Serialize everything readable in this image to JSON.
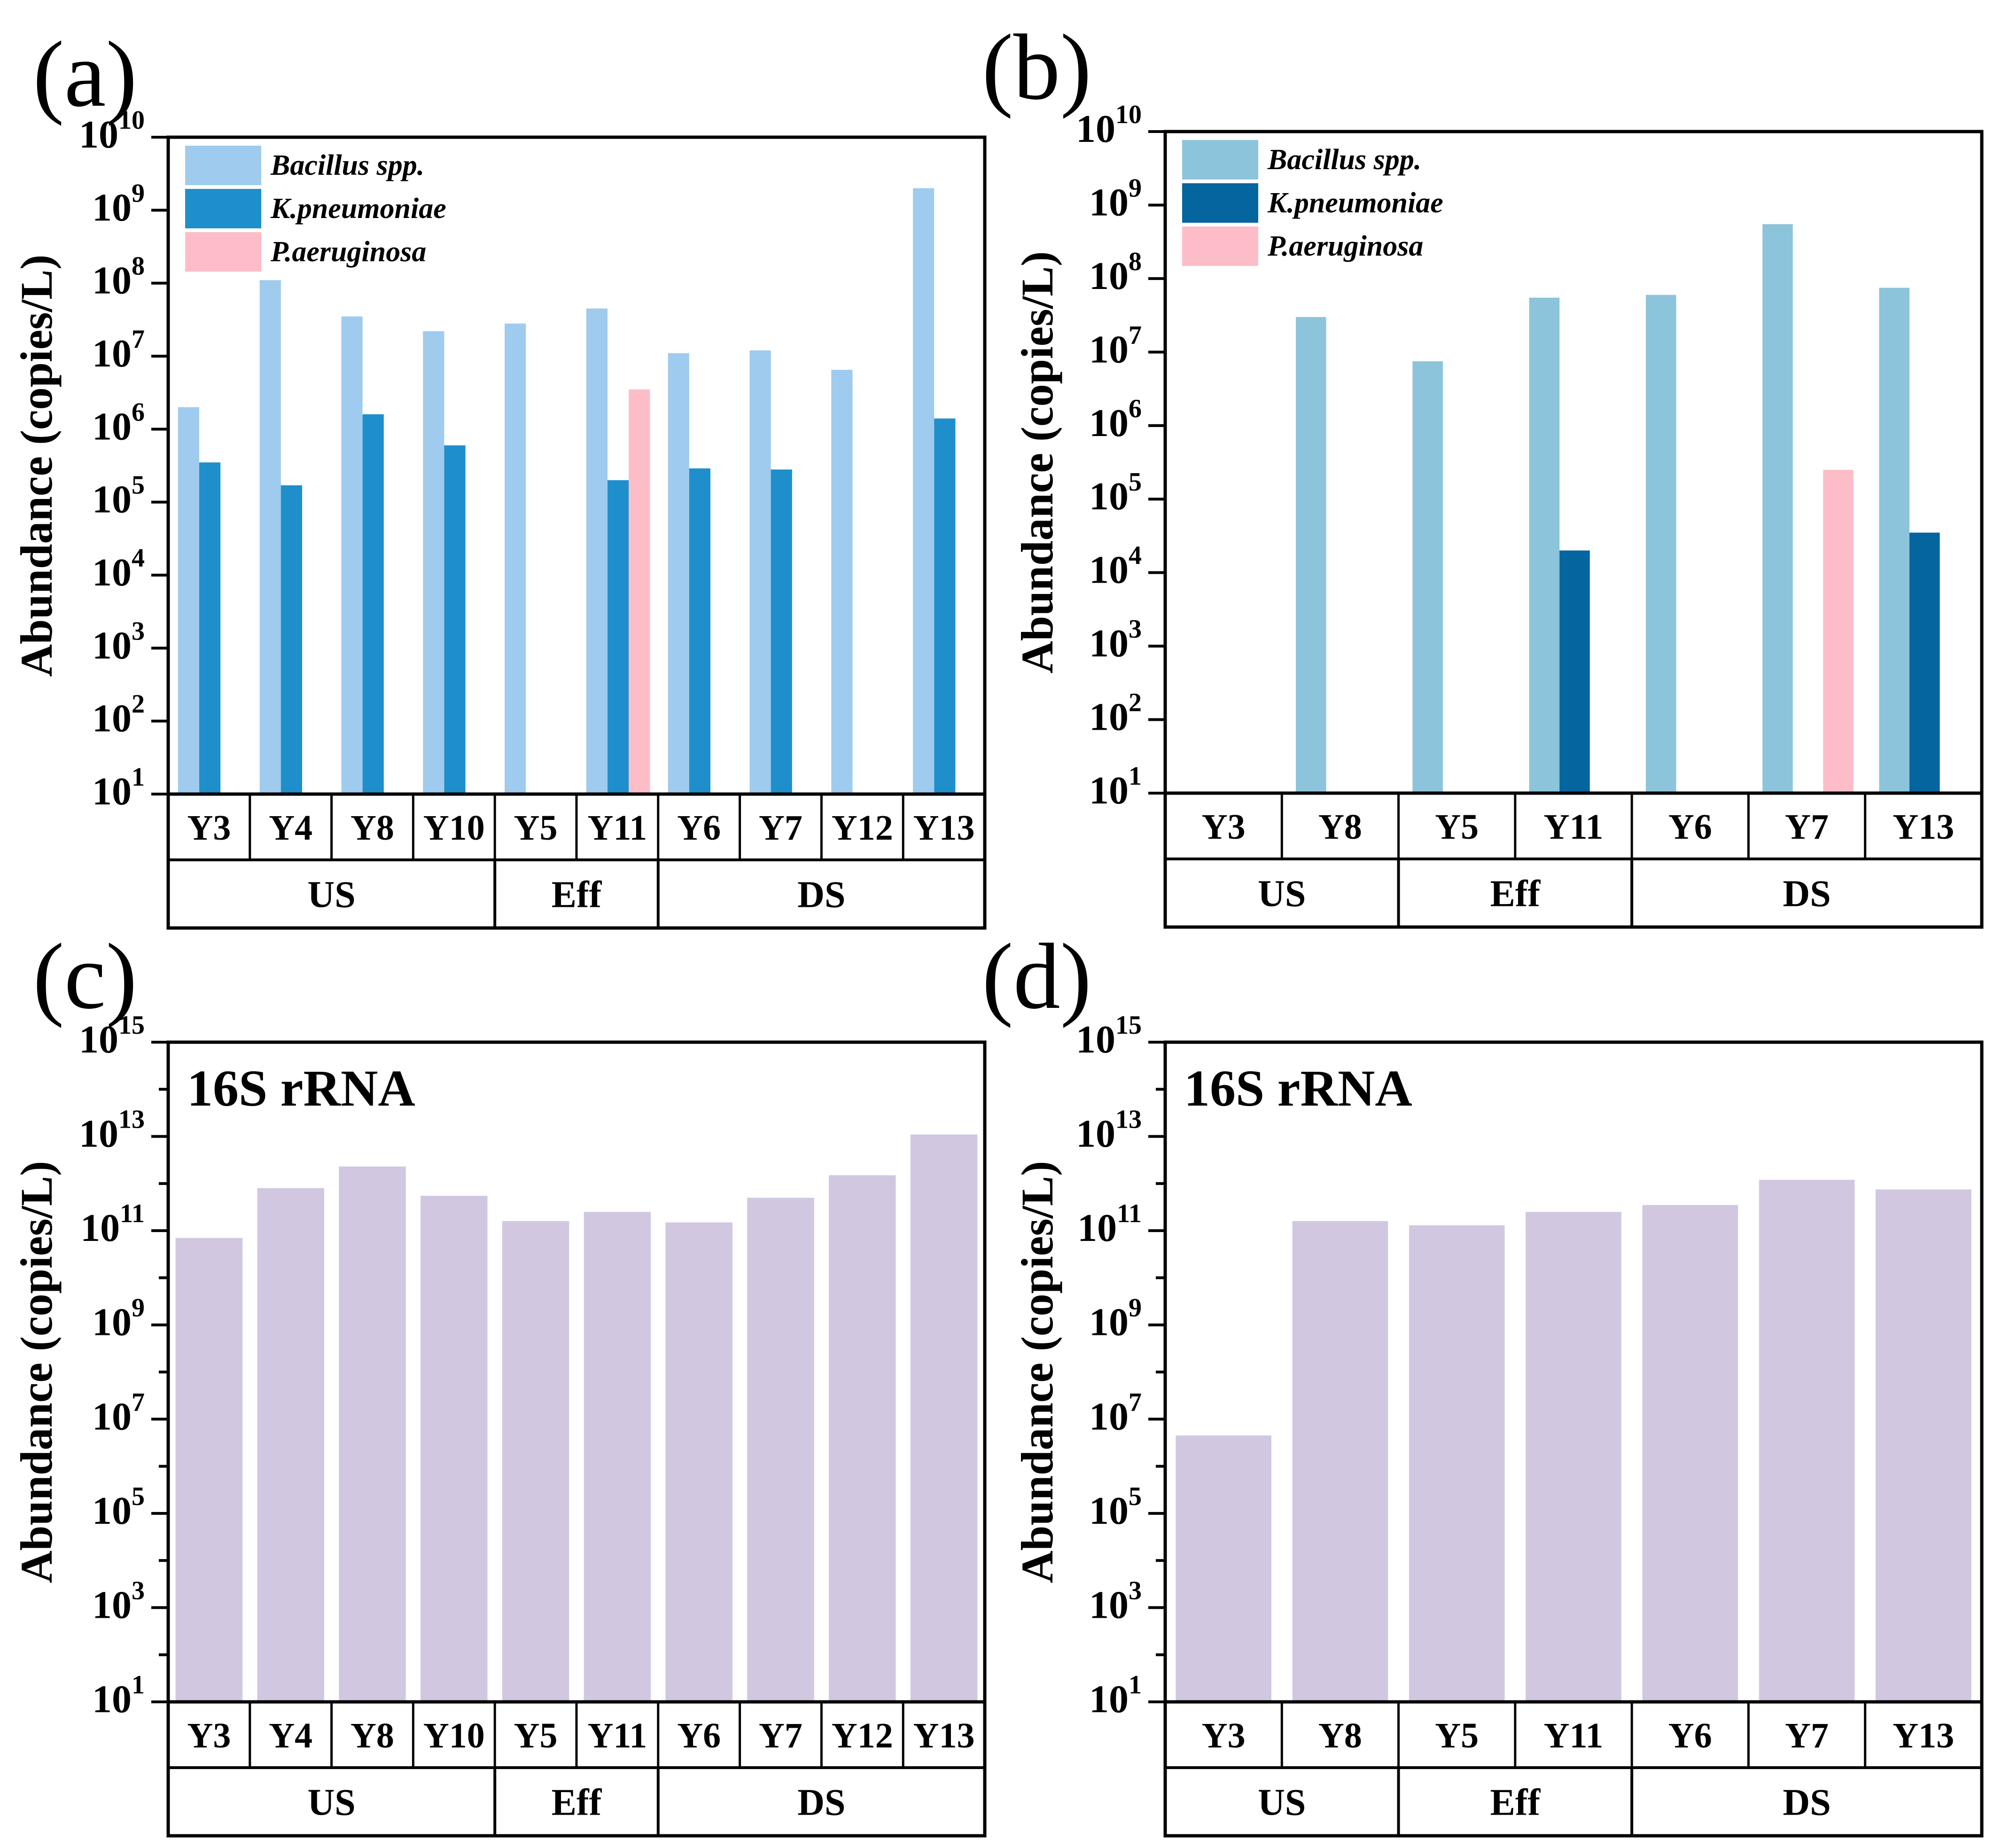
{
  "ylabel": "Abundance (copies/L)",
  "colors": {
    "bacillus_a": "#9fcbee",
    "kpneu_a": "#1f8fcb",
    "paer": "#fdbdc8",
    "bacillus_b": "#8cc4db",
    "kpneu_b": "#05659f",
    "rrna": "#d2c7e1"
  },
  "chart_data": [
    {
      "panel": "(a)",
      "type": "bar",
      "ylabel": "Abundance (copies/L)",
      "yscale": "log",
      "ylim_exp": [
        1,
        10
      ],
      "yticks_exp": [
        1,
        2,
        3,
        4,
        5,
        6,
        7,
        8,
        9,
        10
      ],
      "categories": [
        "Y3",
        "Y4",
        "Y8",
        "Y10",
        "Y5",
        "Y11",
        "Y6",
        "Y7",
        "Y12",
        "Y13"
      ],
      "groups": [
        {
          "label": "US",
          "count": 4
        },
        {
          "label": "Eff",
          "count": 2
        },
        {
          "label": "DS",
          "count": 4
        }
      ],
      "legend_position": "top-left",
      "series": [
        {
          "name": "Bacillus spp.",
          "color_key": "bacillus_a",
          "values": [
            2000000.0,
            110000000.0,
            35000000.0,
            22000000.0,
            28000000.0,
            45000000.0,
            11000000.0,
            12000000.0,
            6500000.0,
            2000000000.0
          ]
        },
        {
          "name": "K.pneumoniae",
          "color_key": "kpneu_a",
          "values": [
            350000.0,
            170000.0,
            1600000.0,
            600000.0,
            null,
            200000.0,
            290000.0,
            280000.0,
            null,
            1400000.0
          ]
        },
        {
          "name": "P.aeruginosa",
          "color_key": "paer",
          "values": [
            null,
            null,
            null,
            null,
            null,
            3500000.0,
            null,
            null,
            null,
            null
          ]
        }
      ]
    },
    {
      "panel": "(b)",
      "type": "bar",
      "ylabel": "Abundance (copies/L)",
      "yscale": "log",
      "ylim_exp": [
        1,
        10
      ],
      "yticks_exp": [
        1,
        2,
        3,
        4,
        5,
        6,
        7,
        8,
        9,
        10
      ],
      "categories": [
        "Y3",
        "Y8",
        "Y5",
        "Y11",
        "Y6",
        "Y7",
        "Y13"
      ],
      "groups": [
        {
          "label": "US",
          "count": 2
        },
        {
          "label": "Eff",
          "count": 2
        },
        {
          "label": "DS",
          "count": 3
        }
      ],
      "legend_position": "top-left",
      "series": [
        {
          "name": "Bacillus spp.",
          "color_key": "bacillus_b",
          "values": [
            null,
            30000000.0,
            7500000.0,
            55000000.0,
            60000000.0,
            550000000.0,
            75000000.0
          ]
        },
        {
          "name": "K.pneumoniae",
          "color_key": "kpneu_b",
          "values": [
            null,
            null,
            null,
            20000.0,
            null,
            null,
            35000.0
          ]
        },
        {
          "name": "P.aeruginosa",
          "color_key": "paer",
          "values": [
            null,
            null,
            null,
            null,
            null,
            250000.0,
            null
          ]
        }
      ]
    },
    {
      "panel": "(c)",
      "type": "bar",
      "title": "16S rRNA",
      "ylabel": "Abundance (copies/L)",
      "yscale": "log",
      "ylim_exp": [
        1,
        15
      ],
      "yticks_exp": [
        1,
        3,
        5,
        7,
        9,
        11,
        13,
        15
      ],
      "categories": [
        "Y3",
        "Y4",
        "Y8",
        "Y10",
        "Y5",
        "Y11",
        "Y6",
        "Y7",
        "Y12",
        "Y13"
      ],
      "groups": [
        {
          "label": "US",
          "count": 4
        },
        {
          "label": "Eff",
          "count": 2
        },
        {
          "label": "DS",
          "count": 4
        }
      ],
      "series": [
        {
          "name": "16S rRNA",
          "color_key": "rrna",
          "values": [
            70000000000.0,
            800000000000.0,
            2300000000000.0,
            550000000000.0,
            160000000000.0,
            250000000000.0,
            150000000000.0,
            500000000000.0,
            1500000000000.0,
            11000000000000.0
          ]
        }
      ]
    },
    {
      "panel": "(d)",
      "type": "bar",
      "title": "16S rRNA",
      "ylabel": "Abundance (copies/L)",
      "yscale": "log",
      "ylim_exp": [
        1,
        15
      ],
      "yticks_exp": [
        1,
        3,
        5,
        7,
        9,
        11,
        13,
        15
      ],
      "categories": [
        "Y3",
        "Y8",
        "Y5",
        "Y11",
        "Y6",
        "Y7",
        "Y13"
      ],
      "groups": [
        {
          "label": "US",
          "count": 2
        },
        {
          "label": "Eff",
          "count": 2
        },
        {
          "label": "DS",
          "count": 3
        }
      ],
      "series": [
        {
          "name": "16S rRNA",
          "color_key": "rrna",
          "values": [
            4500000.0,
            160000000000.0,
            130000000000.0,
            250000000000.0,
            350000000000.0,
            1200000000000.0,
            750000000000.0
          ]
        }
      ]
    }
  ]
}
